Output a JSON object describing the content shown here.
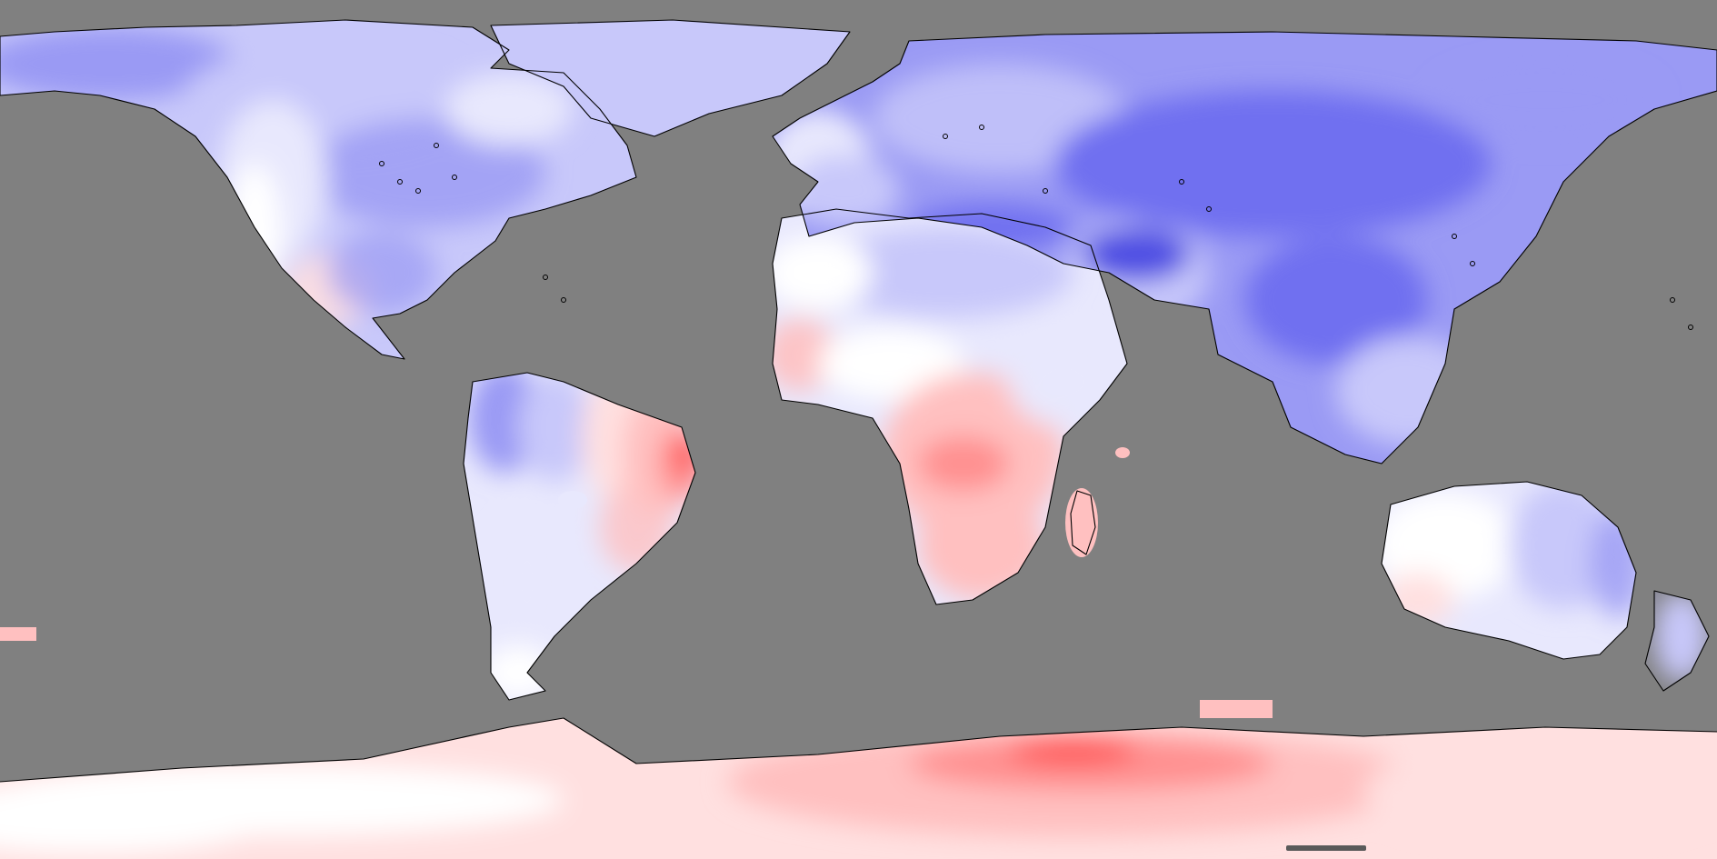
{
  "map": {
    "projection": "equirectangular",
    "background_color": "#808080",
    "coastline_color": "#000000",
    "colors": {
      "deep_blue": "#4040e0",
      "blue": "#7070f0",
      "mid_blue": "#9a9af4",
      "light_blue": "#c8c8fa",
      "pale_blue": "#e8e8fd",
      "white": "#ffffff",
      "pale_red": "#ffe0e0",
      "light_red": "#ffc0c0",
      "red": "#ff9090",
      "deep_red": "#ff4848"
    },
    "scale_indicator": {
      "visible": true,
      "color": "#5a5a5a"
    }
  }
}
